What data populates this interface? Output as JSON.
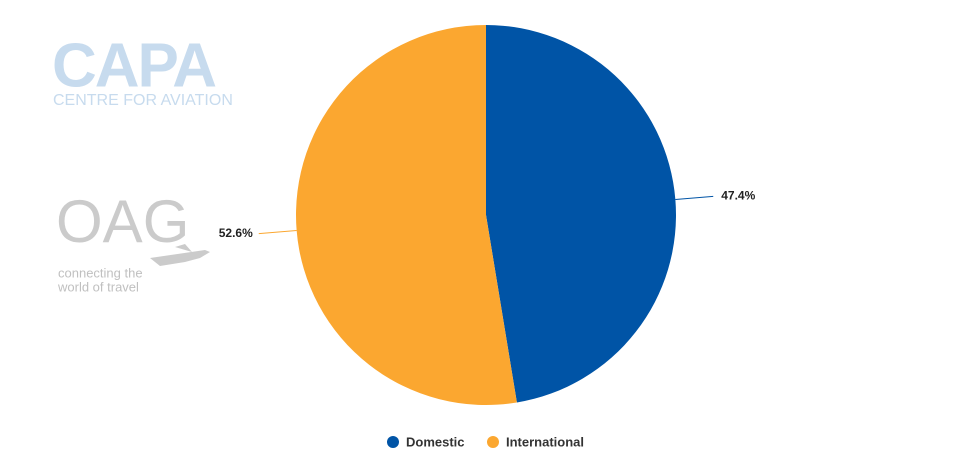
{
  "chart_data": {
    "type": "pie",
    "categories": [
      "Domestic",
      "International"
    ],
    "values": [
      47.4,
      52.6
    ],
    "value_labels": [
      "47.4%",
      "52.6%"
    ],
    "colors": [
      "#0054a6",
      "#fba730"
    ],
    "legend": "bottom"
  },
  "logos": {
    "capa": {
      "title": "CAPA",
      "subtitle": "CENTRE FOR AVIATION"
    },
    "oag": {
      "title": "OAG",
      "tagline": [
        "connecting the",
        "world of travel"
      ]
    }
  }
}
